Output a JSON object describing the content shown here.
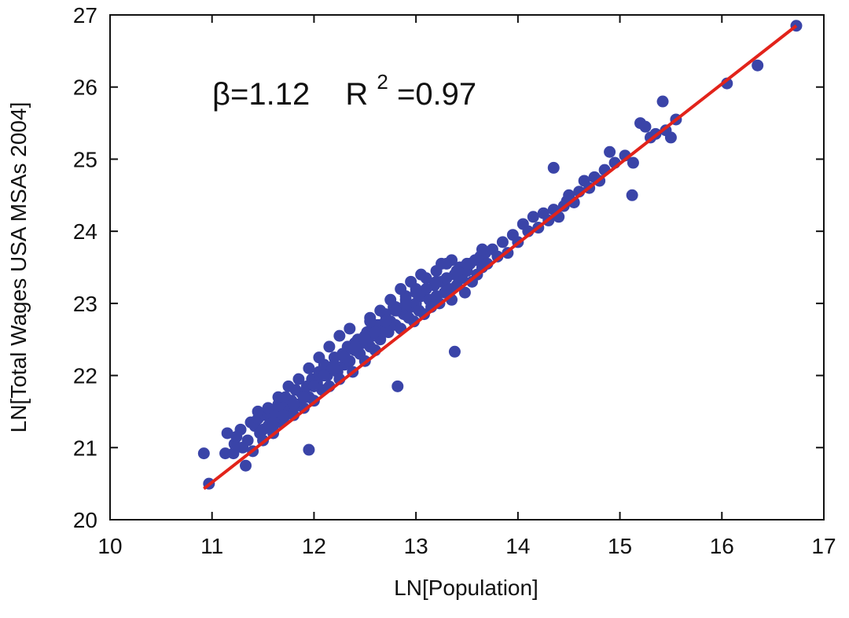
{
  "chart_data": {
    "type": "scatter",
    "title": "",
    "xlabel": "LN[Population]",
    "ylabel": "LN[Total Wages USA MSAs 2004]",
    "xlim": [
      10,
      17
    ],
    "ylim": [
      20,
      27
    ],
    "x_ticks": [
      "10",
      "11",
      "12",
      "13",
      "14",
      "15",
      "16",
      "17"
    ],
    "y_ticks": [
      "20",
      "21",
      "22",
      "23",
      "24",
      "25",
      "26",
      "27"
    ],
    "grid": false,
    "legend": "none",
    "annotation": {
      "beta_prefix": "β=1.12",
      "r_prefix": "R",
      "r_sup": "2",
      "r_suffix": "=0.97"
    },
    "colors": {
      "points": "#3a44a8",
      "fit_line": "#e2231a",
      "axes": "#111111"
    },
    "fit_line": {
      "x": [
        10.92,
        16.73
      ],
      "y": [
        20.43,
        26.85
      ]
    },
    "series": [
      {
        "x": [
          10.92,
          10.97,
          11.13,
          11.15,
          11.21,
          11.22,
          11.24,
          11.28,
          11.3,
          11.33,
          11.35,
          11.38,
          11.4,
          11.42,
          11.45,
          11.47,
          11.5,
          11.52,
          11.55,
          11.58,
          11.6,
          11.62,
          11.65,
          11.68,
          11.7,
          11.72,
          11.75,
          11.78,
          11.8,
          11.82,
          11.85,
          11.88,
          11.9,
          11.93,
          11.95,
          11.98,
          12.0,
          12.03,
          12.05,
          12.08,
          12.1,
          12.13,
          12.15,
          12.18,
          12.2,
          12.23,
          12.25,
          12.28,
          12.3,
          12.33,
          12.35,
          12.38,
          12.4,
          12.43,
          12.45,
          12.48,
          12.5,
          12.52,
          12.55,
          12.58,
          12.6,
          12.63,
          12.65,
          12.68,
          12.7,
          12.73,
          12.75,
          12.78,
          12.8,
          12.82,
          12.85,
          12.88,
          12.9,
          12.93,
          12.95,
          12.98,
          13.0,
          13.03,
          13.05,
          13.08,
          13.1,
          13.13,
          13.15,
          13.18,
          13.2,
          13.23,
          13.25,
          13.28,
          13.3,
          13.33,
          13.35,
          13.38,
          13.4,
          13.43,
          13.45,
          13.48,
          13.5,
          13.53,
          13.55,
          13.58,
          13.6,
          13.63,
          13.65,
          13.68,
          13.7,
          13.75,
          13.8,
          13.85,
          13.9,
          13.95,
          14.0,
          14.05,
          14.1,
          14.15,
          14.2,
          14.25,
          14.3,
          14.35,
          14.4,
          14.45,
          14.5,
          14.55,
          14.6,
          14.65,
          14.7,
          14.75,
          14.8,
          14.85,
          14.9,
          14.95,
          15.05,
          15.13,
          15.2,
          15.25,
          15.3,
          15.35,
          15.42,
          15.45,
          15.5,
          15.55,
          16.05,
          16.35,
          16.73,
          11.6,
          11.7,
          11.8,
          11.9,
          12.0,
          12.1,
          12.2,
          12.3,
          12.4,
          12.5,
          12.6,
          12.7,
          12.8,
          12.9,
          13.0,
          13.1,
          13.2,
          13.3,
          11.5,
          11.6,
          11.7,
          11.8,
          11.9,
          12.0,
          12.1,
          12.2,
          12.3,
          12.4,
          12.5,
          12.6,
          12.7,
          12.8,
          12.9,
          13.0,
          13.2,
          13.4,
          11.45,
          11.55,
          11.65,
          11.75,
          11.85,
          11.95,
          12.05,
          12.15,
          12.25,
          12.35,
          12.55,
          12.65,
          12.75,
          12.85,
          12.95,
          13.05,
          13.25,
          13.35,
          13.5,
          13.65,
          14.35,
          14.48,
          15.12,
          13.38,
          12.82,
          12.55,
          11.95
        ],
        "y": [
          20.92,
          20.5,
          20.92,
          21.2,
          20.92,
          21.05,
          21.15,
          21.25,
          21.0,
          20.75,
          21.1,
          21.35,
          20.95,
          21.3,
          21.4,
          21.2,
          21.1,
          21.45,
          21.3,
          21.5,
          21.2,
          21.45,
          21.6,
          21.35,
          21.55,
          21.7,
          21.5,
          21.65,
          21.45,
          21.8,
          21.6,
          21.75,
          21.55,
          21.85,
          21.7,
          21.95,
          21.65,
          21.9,
          22.05,
          21.8,
          22.15,
          22.0,
          21.85,
          22.1,
          22.25,
          22.05,
          21.95,
          22.3,
          22.15,
          22.4,
          22.2,
          22.05,
          22.35,
          22.5,
          22.3,
          22.45,
          22.2,
          22.6,
          22.4,
          22.55,
          22.35,
          22.7,
          22.5,
          22.65,
          22.85,
          22.6,
          22.75,
          22.95,
          22.7,
          22.9,
          22.65,
          22.85,
          23.05,
          22.8,
          22.95,
          22.75,
          23.0,
          22.9,
          23.1,
          22.85,
          23.2,
          23.05,
          22.95,
          23.25,
          23.1,
          23.0,
          23.3,
          23.15,
          23.35,
          23.2,
          23.05,
          23.4,
          23.25,
          23.5,
          23.35,
          23.15,
          23.45,
          23.55,
          23.3,
          23.6,
          23.4,
          23.65,
          23.5,
          23.7,
          23.55,
          23.75,
          23.65,
          23.85,
          23.7,
          23.95,
          23.85,
          24.1,
          24.0,
          24.2,
          24.05,
          24.25,
          24.15,
          24.3,
          24.2,
          24.35,
          24.5,
          24.4,
          24.55,
          24.7,
          24.6,
          24.75,
          24.7,
          24.85,
          25.1,
          24.95,
          25.05,
          24.95,
          25.5,
          25.45,
          25.3,
          25.35,
          25.8,
          25.4,
          25.3,
          25.55,
          26.05,
          26.3,
          26.85,
          21.35,
          21.4,
          21.55,
          21.7,
          21.85,
          22.0,
          22.15,
          22.3,
          22.45,
          22.55,
          22.7,
          22.85,
          22.95,
          23.1,
          23.2,
          23.35,
          23.45,
          23.55,
          21.25,
          21.3,
          21.45,
          21.6,
          21.7,
          21.85,
          22.0,
          22.1,
          22.25,
          22.4,
          22.5,
          22.6,
          22.75,
          22.9,
          23.0,
          23.15,
          23.3,
          23.45,
          21.5,
          21.55,
          21.7,
          21.85,
          21.95,
          22.1,
          22.25,
          22.4,
          22.55,
          22.65,
          22.8,
          22.9,
          23.05,
          23.2,
          23.3,
          23.4,
          23.55,
          23.6,
          23.55,
          23.75,
          24.88,
          24.42,
          24.5,
          22.33,
          21.85,
          22.75,
          20.97
        ]
      }
    ]
  }
}
